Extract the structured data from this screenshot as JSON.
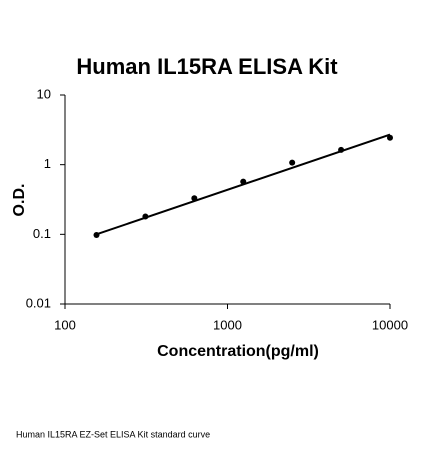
{
  "chart_data": {
    "type": "scatter",
    "title": "Human IL15RA ELISA Kit",
    "x_label": "Concentration(pg/ml)",
    "y_label": "O.D.",
    "caption": "Human IL15RA EZ-Set ELISA Kit standard curve",
    "x": [
      156.25,
      312.5,
      625,
      1250,
      2500,
      5000,
      10000
    ],
    "values": [
      0.098,
      0.18,
      0.33,
      0.57,
      1.07,
      1.63,
      2.43
    ],
    "color": "#000000",
    "trendline": {
      "x": [
        156.25,
        10000
      ],
      "y": [
        0.1,
        2.7
      ]
    },
    "xscale": "log",
    "yscale": "log",
    "xlim": [
      100,
      10000
    ],
    "ylim": [
      0.01,
      10
    ],
    "xticks": [
      100,
      1000,
      10000
    ],
    "yticks": [
      0.01,
      0.1,
      1,
      10
    ],
    "grid": false
  }
}
